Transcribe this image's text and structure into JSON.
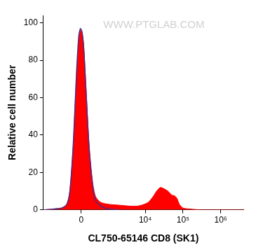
{
  "chart_data": {
    "type": "area",
    "xlabel": "CL750-65146 CD8 (SK1)",
    "ylabel": "Relative cell number",
    "annotations": [
      "WWW.PTGLAB.COM"
    ],
    "log": "x",
    "x": [
      -2000,
      -1000,
      -600,
      -400,
      -300,
      -200,
      -120,
      -60,
      -20,
      20,
      60,
      120,
      200,
      300,
      400,
      600,
      1000,
      2000,
      4000,
      6000,
      8000,
      12000,
      16000,
      20000,
      25000,
      30000,
      40000,
      50000,
      60000,
      70000,
      80000,
      100000,
      150000,
      300000,
      4000000
    ],
    "series": [
      {
        "type": "area",
        "color": "#ff0000",
        "values": [
          0,
          0.5,
          1,
          3,
          10,
          35,
          70,
          90,
          96,
          95,
          88,
          65,
          35,
          15,
          7,
          4,
          3,
          2.5,
          2,
          2,
          2.5,
          4,
          7,
          10,
          12,
          11.5,
          10,
          8,
          7.5,
          6,
          3,
          1,
          0.5,
          0,
          0
        ]
      },
      {
        "type": "line",
        "color": "#4b2a8a",
        "values": [
          0,
          0.5,
          1,
          3,
          10,
          36,
          72,
          93,
          97,
          95,
          87,
          63,
          33,
          13,
          5,
          2,
          0.5,
          0,
          null,
          null,
          null,
          null,
          null,
          null,
          null,
          null,
          null,
          null,
          null,
          null,
          null,
          null,
          null,
          null,
          null
        ]
      }
    ],
    "xlim": [
      -2000,
      4000000
    ],
    "xticks": [
      0,
      {
        "value": 10000,
        "label": "10⁴"
      },
      {
        "value": 100000,
        "label": "10⁵"
      },
      {
        "value": 1000000,
        "label": "10⁶"
      }
    ],
    "ylim": [
      0,
      104
    ],
    "yticks": [
      0,
      20,
      40,
      60,
      80,
      100
    ],
    "grid": false
  }
}
